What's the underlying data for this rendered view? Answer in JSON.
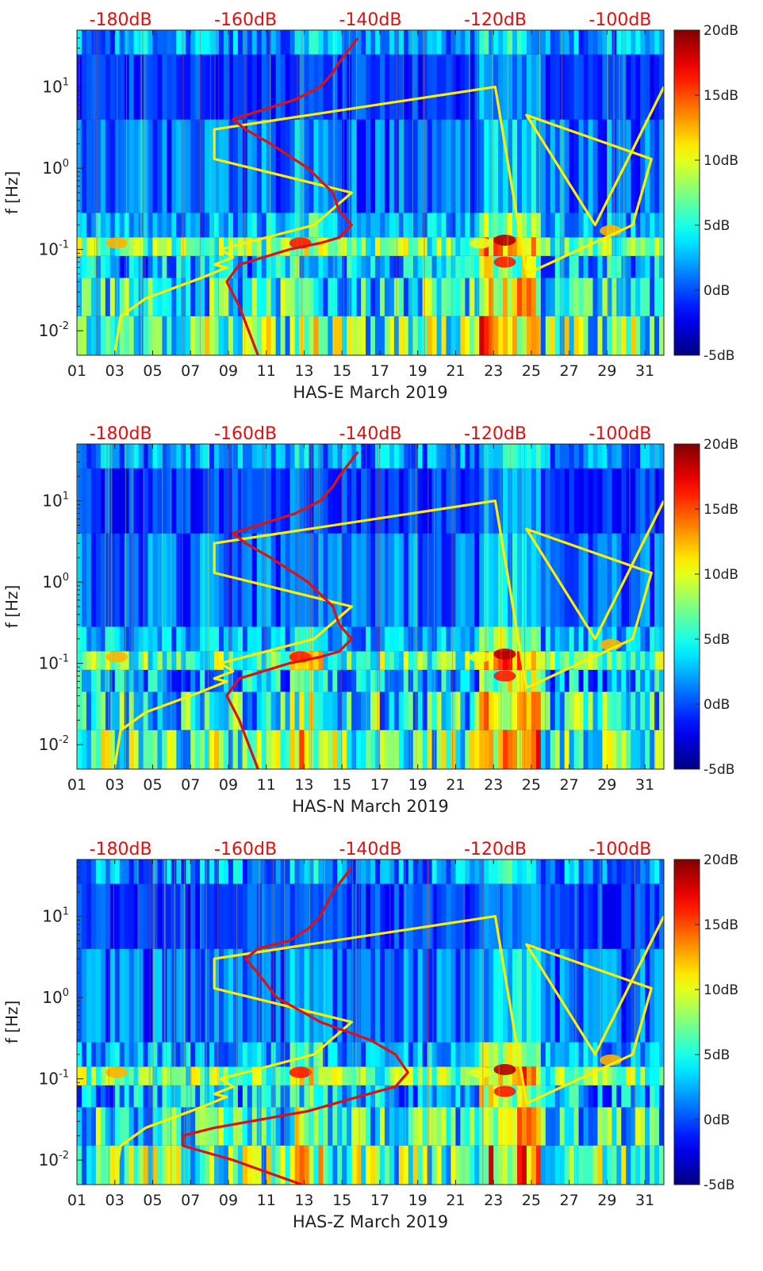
{
  "chart_data": [
    {
      "type": "heatmap",
      "title": "",
      "xlabel": "HAS-E March 2019",
      "ylabel": "f [Hz]",
      "x_ticks": [
        "01",
        "03",
        "05",
        "07",
        "09",
        "11",
        "13",
        "15",
        "17",
        "19",
        "21",
        "23",
        "25",
        "27",
        "29",
        "31"
      ],
      "y_ticks": [
        "10-2",
        "10-1",
        "100",
        "101"
      ],
      "top_ticks": [
        "-180dB",
        "-160dB",
        "-140dB",
        "-120dB",
        "-100dB"
      ],
      "colorbar_ticks": [
        "20dB",
        "15dB",
        "10dB",
        "5dB",
        "0dB",
        "-5dB"
      ],
      "colorbar_range_db": [
        -5,
        20
      ],
      "xlim": [
        1,
        32
      ],
      "ylim_hz": [
        0.005,
        50
      ],
      "top_axis_db": [
        -187,
        -93
      ],
      "series": [
        {
          "name": "yellow model curve",
          "color": "#ffee00",
          "db": [
            -181,
            -180,
            -176,
            -167,
            -163,
            -165,
            -162,
            -164,
            -149,
            -143,
            -165,
            -165,
            -120,
            -115,
            -98,
            -95,
            -115,
            -104,
            -93
          ],
          "hz": [
            0.005,
            0.015,
            0.025,
            0.045,
            0.06,
            0.065,
            0.08,
            0.1,
            0.2,
            0.5,
            1.3,
            3,
            10,
            0.05,
            0.2,
            1.3,
            4.5,
            0.2,
            10
          ]
        },
        {
          "name": "red model curve",
          "color": "#dd1111",
          "db": [
            -158,
            -161,
            -163,
            -161,
            -153,
            -148,
            -145,
            -143,
            -145,
            -146,
            -150,
            -156,
            -160,
            -162,
            -158,
            -152,
            -148,
            -146,
            -145,
            -142
          ],
          "hz": [
            0.005,
            0.02,
            0.04,
            0.065,
            0.1,
            0.12,
            0.14,
            0.2,
            0.3,
            0.5,
            1,
            2,
            3,
            4,
            5,
            7,
            10,
            15,
            20,
            40
          ]
        }
      ]
    },
    {
      "type": "heatmap",
      "title": "",
      "xlabel": "HAS-N March 2019",
      "ylabel": "f [Hz]",
      "x_ticks": [
        "01",
        "03",
        "05",
        "07",
        "09",
        "11",
        "13",
        "15",
        "17",
        "19",
        "21",
        "23",
        "25",
        "27",
        "29",
        "31"
      ],
      "y_ticks": [
        "10-2",
        "10-1",
        "100",
        "101"
      ],
      "top_ticks": [
        "-180dB",
        "-160dB",
        "-140dB",
        "-120dB",
        "-100dB"
      ],
      "colorbar_ticks": [
        "20dB",
        "15dB",
        "10dB",
        "5dB",
        "0dB",
        "-5dB"
      ],
      "colorbar_range_db": [
        -5,
        20
      ],
      "xlim": [
        1,
        32
      ],
      "ylim_hz": [
        0.005,
        50
      ],
      "top_axis_db": [
        -187,
        -93
      ],
      "series": [
        {
          "name": "yellow model curve",
          "color": "#ffee00",
          "db": [
            -181,
            -180,
            -176,
            -167,
            -163,
            -165,
            -162,
            -164,
            -149,
            -143,
            -165,
            -165,
            -120,
            -115,
            -98,
            -95,
            -115,
            -104,
            -93
          ],
          "hz": [
            0.005,
            0.015,
            0.025,
            0.045,
            0.06,
            0.065,
            0.08,
            0.1,
            0.2,
            0.5,
            1.3,
            3,
            10,
            0.05,
            0.2,
            1.3,
            4.5,
            0.2,
            10
          ]
        },
        {
          "name": "red model curve",
          "color": "#dd1111",
          "db": [
            -158,
            -161,
            -163,
            -161,
            -153,
            -148,
            -145,
            -143,
            -145,
            -146,
            -150,
            -156,
            -160,
            -162,
            -158,
            -152,
            -148,
            -146,
            -145,
            -142
          ],
          "hz": [
            0.005,
            0.02,
            0.04,
            0.065,
            0.1,
            0.12,
            0.14,
            0.2,
            0.3,
            0.5,
            1,
            2,
            3,
            4,
            5,
            7,
            10,
            15,
            20,
            40
          ]
        }
      ]
    },
    {
      "type": "heatmap",
      "title": "",
      "xlabel": "HAS-Z March 2019",
      "ylabel": "f [Hz]",
      "x_ticks": [
        "01",
        "03",
        "05",
        "07",
        "09",
        "11",
        "13",
        "15",
        "17",
        "19",
        "21",
        "23",
        "25",
        "27",
        "29",
        "31"
      ],
      "y_ticks": [
        "10-2",
        "10-1",
        "100",
        "101"
      ],
      "top_ticks": [
        "-180dB",
        "-160dB",
        "-140dB",
        "-120dB",
        "-100dB"
      ],
      "colorbar_ticks": [
        "20dB",
        "15dB",
        "10dB",
        "5dB",
        "0dB",
        "-5dB"
      ],
      "colorbar_range_db": [
        -5,
        20
      ],
      "xlim": [
        1,
        32
      ],
      "ylim_hz": [
        0.005,
        50
      ],
      "top_axis_db": [
        -187,
        -93
      ],
      "series": [
        {
          "name": "yellow model curve",
          "color": "#ffee00",
          "db": [
            -181,
            -180,
            -176,
            -167,
            -163,
            -165,
            -162,
            -164,
            -149,
            -143,
            -165,
            -165,
            -120,
            -115,
            -98,
            -95,
            -115,
            -104,
            -93
          ],
          "hz": [
            0.005,
            0.015,
            0.025,
            0.045,
            0.06,
            0.065,
            0.08,
            0.1,
            0.2,
            0.5,
            1.3,
            3,
            10,
            0.05,
            0.2,
            1.3,
            4.5,
            0.2,
            10
          ]
        },
        {
          "name": "red model curve",
          "color": "#dd1111",
          "db": [
            -151,
            -162,
            -170,
            -170,
            -165,
            -150,
            -142,
            -136,
            -134,
            -136,
            -140,
            -148,
            -155,
            -158,
            -160,
            -158,
            -153,
            -150,
            -148,
            -146,
            -143
          ],
          "hz": [
            0.005,
            0.01,
            0.015,
            0.02,
            0.025,
            0.04,
            0.06,
            0.08,
            0.12,
            0.2,
            0.3,
            0.5,
            1,
            2,
            3,
            4,
            5,
            7,
            10,
            20,
            40
          ]
        }
      ]
    }
  ]
}
